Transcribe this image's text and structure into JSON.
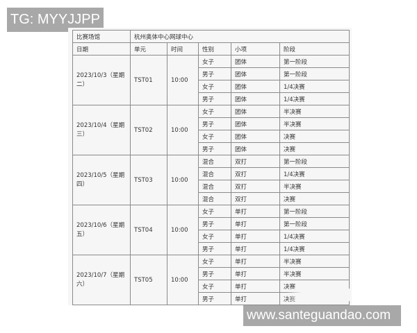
{
  "watermarks": {
    "top": "TG: MYYJJPP",
    "bottom": "www.santeguandao.com"
  },
  "venue": {
    "label": "比赛场馆",
    "value": "杭州奥体中心网球中心"
  },
  "headers": [
    "日期",
    "单元",
    "时间",
    "性别",
    "小项",
    "阶段"
  ],
  "groups": [
    {
      "date": "2023/10/3（星期二）",
      "unit": "TST01",
      "time": "10:00",
      "rows": [
        [
          "女子",
          "团体",
          "第一阶段"
        ],
        [
          "男子",
          "团体",
          "第一阶段"
        ],
        [
          "女子",
          "团体",
          "1/4决赛"
        ],
        [
          "男子",
          "团体",
          "1/4决赛"
        ]
      ]
    },
    {
      "date": "2023/10/4（星期三）",
      "unit": "TST02",
      "time": "10:00",
      "rows": [
        [
          "女子",
          "团体",
          "半决赛"
        ],
        [
          "男子",
          "团体",
          "半决赛"
        ],
        [
          "女子",
          "团体",
          "决赛"
        ],
        [
          "男子",
          "团体",
          "决赛"
        ]
      ]
    },
    {
      "date": "2023/10/5（星期四）",
      "unit": "TST03",
      "time": "10:00",
      "rows": [
        [
          "混合",
          "双打",
          "第一阶段"
        ],
        [
          "混合",
          "双打",
          "1/4决赛"
        ],
        [
          "混合",
          "双打",
          "半决赛"
        ],
        [
          "混合",
          "双打",
          "决赛"
        ]
      ]
    },
    {
      "date": "2023/10/6（星期五）",
      "unit": "TST04",
      "time": "10:00",
      "rows": [
        [
          "女子",
          "单打",
          "第一阶段"
        ],
        [
          "男子",
          "单打",
          "第一阶段"
        ],
        [
          "女子",
          "单打",
          "1/4决赛"
        ],
        [
          "男子",
          "单打",
          "1/4决赛"
        ]
      ]
    },
    {
      "date": "2023/10/7（星期六）",
      "unit": "TST05",
      "time": "10:00",
      "rows": [
        [
          "女子",
          "单打",
          "半决赛"
        ],
        [
          "男子",
          "单打",
          "半决赛"
        ],
        [
          "女子",
          "单打",
          "决赛"
        ],
        [
          "男子",
          "单打",
          "决赛"
        ]
      ]
    }
  ]
}
